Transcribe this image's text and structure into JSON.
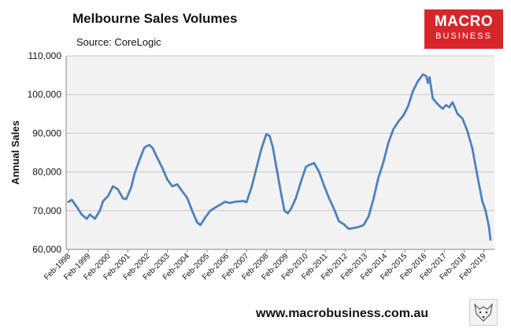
{
  "title": "Melbourne Sales Volumes",
  "source": "Source: CoreLogic",
  "logo": {
    "line1": "MACRO",
    "line2": "BUSINESS"
  },
  "website": "www.macrobusiness.com.au",
  "colors": {
    "line": "#4f81bd",
    "plot_bg": "#f2f2f2",
    "logo_bg": "#d6262c"
  },
  "chart_data": {
    "type": "line",
    "title": "Melbourne Sales Volumes",
    "ylabel": "Annual Sales",
    "xlabel": "",
    "ylim": [
      60000,
      110000
    ],
    "yticks": [
      "60,000",
      "70,000",
      "80,000",
      "90,000",
      "100,000",
      "110,000"
    ],
    "ytick_values": [
      60000,
      70000,
      80000,
      90000,
      100000,
      110000
    ],
    "xticks": [
      "Feb-1998",
      "Feb-1999",
      "Feb-2000",
      "Feb-2001",
      "Feb-2002",
      "Feb-2003",
      "Feb-2004",
      "Feb-2005",
      "Feb-2006",
      "Feb-2007",
      "Feb-2008",
      "Feb-2009",
      "Feb-2010",
      "Feb-2011",
      "Feb-2012",
      "Feb-2013",
      "Feb-2014",
      "Feb-2015",
      "Feb-2016",
      "Feb-2017",
      "Feb-2018",
      "Feb-2019"
    ],
    "x_start": "Feb-1998",
    "x_end": "Jun-2019",
    "grid": "horizontal",
    "series": [
      {
        "values": [
          {
            "x": "1998-02",
            "y": 72300
          },
          {
            "x": "1998-04",
            "y": 72800
          },
          {
            "x": "1998-07",
            "y": 71000
          },
          {
            "x": "1998-10",
            "y": 69000
          },
          {
            "x": "1999-01",
            "y": 67900
          },
          {
            "x": "1999-03",
            "y": 69000
          },
          {
            "x": "1999-06",
            "y": 67900
          },
          {
            "x": "1999-09",
            "y": 70000
          },
          {
            "x": "1999-11",
            "y": 72500
          },
          {
            "x": "2000-02",
            "y": 73800
          },
          {
            "x": "2000-05",
            "y": 76300
          },
          {
            "x": "2000-08",
            "y": 75500
          },
          {
            "x": "2000-11",
            "y": 73200
          },
          {
            "x": "2001-01",
            "y": 73000
          },
          {
            "x": "2001-04",
            "y": 76000
          },
          {
            "x": "2001-06",
            "y": 79500
          },
          {
            "x": "2001-09",
            "y": 83000
          },
          {
            "x": "2001-12",
            "y": 86300
          },
          {
            "x": "2002-03",
            "y": 87000
          },
          {
            "x": "2002-05",
            "y": 86200
          },
          {
            "x": "2002-08",
            "y": 83500
          },
          {
            "x": "2002-11",
            "y": 81000
          },
          {
            "x": "2003-02",
            "y": 78000
          },
          {
            "x": "2003-05",
            "y": 76300
          },
          {
            "x": "2003-08",
            "y": 76800
          },
          {
            "x": "2003-11",
            "y": 75000
          },
          {
            "x": "2004-02",
            "y": 73300
          },
          {
            "x": "2004-05",
            "y": 70000
          },
          {
            "x": "2004-08",
            "y": 67000
          },
          {
            "x": "2004-10",
            "y": 66300
          },
          {
            "x": "2005-01",
            "y": 68300
          },
          {
            "x": "2005-04",
            "y": 70000
          },
          {
            "x": "2005-07",
            "y": 70800
          },
          {
            "x": "2006-01",
            "y": 72300
          },
          {
            "x": "2006-04",
            "y": 72000
          },
          {
            "x": "2006-07",
            "y": 72300
          },
          {
            "x": "2006-12",
            "y": 72500
          },
          {
            "x": "2007-02",
            "y": 72200
          },
          {
            "x": "2007-05",
            "y": 76000
          },
          {
            "x": "2007-08",
            "y": 81000
          },
          {
            "x": "2007-11",
            "y": 86000
          },
          {
            "x": "2008-02",
            "y": 89800
          },
          {
            "x": "2008-04",
            "y": 89300
          },
          {
            "x": "2008-06",
            "y": 86300
          },
          {
            "x": "2008-08",
            "y": 81500
          },
          {
            "x": "2008-11",
            "y": 74300
          },
          {
            "x": "2009-01",
            "y": 70000
          },
          {
            "x": "2009-03",
            "y": 69300
          },
          {
            "x": "2009-05",
            "y": 70500
          },
          {
            "x": "2009-08",
            "y": 73300
          },
          {
            "x": "2009-11",
            "y": 77500
          },
          {
            "x": "2010-02",
            "y": 81300
          },
          {
            "x": "2010-04",
            "y": 81800
          },
          {
            "x": "2010-07",
            "y": 82300
          },
          {
            "x": "2010-10",
            "y": 80000
          },
          {
            "x": "2011-01",
            "y": 76500
          },
          {
            "x": "2011-04",
            "y": 73300
          },
          {
            "x": "2011-07",
            "y": 70500
          },
          {
            "x": "2011-10",
            "y": 67300
          },
          {
            "x": "2012-01",
            "y": 66500
          },
          {
            "x": "2012-04",
            "y": 65300
          },
          {
            "x": "2012-07",
            "y": 65500
          },
          {
            "x": "2012-10",
            "y": 65800
          },
          {
            "x": "2013-01",
            "y": 66300
          },
          {
            "x": "2013-04",
            "y": 68500
          },
          {
            "x": "2013-07",
            "y": 73000
          },
          {
            "x": "2013-10",
            "y": 78500
          },
          {
            "x": "2014-01",
            "y": 82500
          },
          {
            "x": "2014-04",
            "y": 87500
          },
          {
            "x": "2014-07",
            "y": 91000
          },
          {
            "x": "2014-10",
            "y": 93000
          },
          {
            "x": "2015-01",
            "y": 94500
          },
          {
            "x": "2015-04",
            "y": 97000
          },
          {
            "x": "2015-07",
            "y": 101000
          },
          {
            "x": "2015-10",
            "y": 103500
          },
          {
            "x": "2016-01",
            "y": 105200
          },
          {
            "x": "2016-03",
            "y": 104800
          },
          {
            "x": "2016-04",
            "y": 103000
          },
          {
            "x": "2016-05",
            "y": 104500
          },
          {
            "x": "2016-07",
            "y": 99000
          },
          {
            "x": "2016-10",
            "y": 97500
          },
          {
            "x": "2017-01",
            "y": 96300
          },
          {
            "x": "2017-03",
            "y": 97300
          },
          {
            "x": "2017-05",
            "y": 96700
          },
          {
            "x": "2017-07",
            "y": 98000
          },
          {
            "x": "2017-10",
            "y": 95000
          },
          {
            "x": "2018-01",
            "y": 93800
          },
          {
            "x": "2018-04",
            "y": 90500
          },
          {
            "x": "2018-07",
            "y": 86000
          },
          {
            "x": "2018-10",
            "y": 79000
          },
          {
            "x": "2019-01",
            "y": 72500
          },
          {
            "x": "2019-03",
            "y": 70000
          },
          {
            "x": "2019-05",
            "y": 66000
          },
          {
            "x": "2019-06",
            "y": 62500
          }
        ]
      }
    ]
  }
}
